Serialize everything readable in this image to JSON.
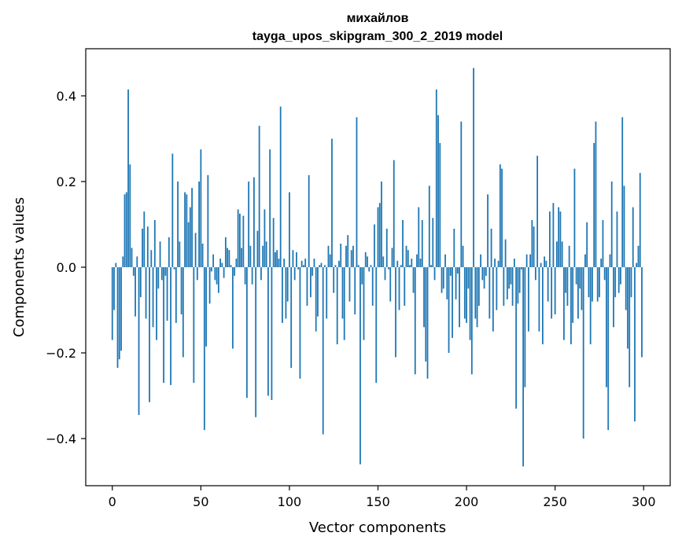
{
  "chart_data": {
    "type": "bar",
    "title": "михайлов",
    "subtitle": "tayga_upos_skipgram_300_2_2019 model",
    "xlabel": "Vector components",
    "ylabel": "Components values",
    "xlim": [
      -15,
      315
    ],
    "ylim": [
      -0.51,
      0.51
    ],
    "xticks": [
      0,
      50,
      100,
      150,
      200,
      250,
      300
    ],
    "yticks": [
      -0.4,
      -0.2,
      0.0,
      0.2,
      0.4
    ],
    "xtick_labels": [
      "0",
      "50",
      "100",
      "150",
      "200",
      "250",
      "300"
    ],
    "ytick_labels": [
      "−0.4",
      "−0.2",
      "0.0",
      "0.2",
      "0.4"
    ],
    "grid": false,
    "bar_color": "#1f77b4",
    "x_start": 0,
    "values": [
      -0.17,
      -0.1,
      0.01,
      -0.235,
      -0.215,
      -0.195,
      0.025,
      0.17,
      0.175,
      0.415,
      0.24,
      0.045,
      -0.02,
      -0.115,
      0.025,
      -0.345,
      -0.07,
      0.09,
      0.13,
      -0.12,
      0.095,
      -0.315,
      0.04,
      -0.14,
      0.11,
      -0.17,
      -0.05,
      0.06,
      -0.03,
      -0.27,
      -0.02,
      -0.125,
      0.07,
      -0.275,
      0.265,
      -0.005,
      -0.13,
      0.2,
      0.06,
      -0.11,
      -0.21,
      0.175,
      0.17,
      0.105,
      0.14,
      0.185,
      -0.27,
      0.08,
      -0.03,
      0.2,
      0.275,
      0.055,
      -0.38,
      -0.185,
      0.215,
      -0.085,
      -0.01,
      0.03,
      -0.03,
      -0.04,
      -0.06,
      0.02,
      0.01,
      -0.025,
      0.07,
      0.045,
      0.04,
      0.005,
      -0.19,
      -0.02,
      0.02,
      0.135,
      0.125,
      0.045,
      0.12,
      -0.04,
      -0.305,
      0.2,
      0.05,
      -0.04,
      0.21,
      -0.35,
      0.085,
      0.33,
      -0.03,
      0.05,
      0.135,
      0.06,
      -0.3,
      0.275,
      -0.31,
      0.115,
      0.035,
      0.04,
      0.02,
      0.375,
      -0.13,
      0.02,
      -0.12,
      -0.08,
      0.175,
      -0.235,
      0.04,
      -0.03,
      0.035,
      -0.005,
      -0.26,
      0.015,
      0.005,
      0.02,
      -0.09,
      0.215,
      -0.07,
      -0.02,
      0.02,
      -0.15,
      -0.115,
      0.005,
      0.01,
      -0.39,
      0.005,
      -0.12,
      0.05,
      0.03,
      0.3,
      -0.06,
      0.005,
      -0.18,
      0.015,
      0.055,
      -0.12,
      -0.17,
      0.05,
      0.075,
      -0.08,
      0.04,
      0.05,
      -0.11,
      0.35,
      0.005,
      -0.46,
      -0.04,
      -0.17,
      0.035,
      0.025,
      -0.01,
      0.005,
      -0.09,
      0.1,
      -0.27,
      0.14,
      0.15,
      0.2,
      0.025,
      -0.03,
      0.09,
      -0.005,
      -0.08,
      0.045,
      0.25,
      -0.21,
      0.015,
      -0.1,
      0.005,
      0.11,
      -0.09,
      0.05,
      0.04,
      0.005,
      0.02,
      -0.06,
      -0.25,
      0.03,
      0.14,
      0.02,
      0.11,
      -0.14,
      -0.22,
      -0.26,
      0.19,
      0.005,
      0.115,
      -0.03,
      0.415,
      0.355,
      0.29,
      -0.06,
      -0.05,
      0.03,
      -0.075,
      -0.2,
      -0.02,
      -0.165,
      0.09,
      -0.075,
      -0.015,
      -0.14,
      0.34,
      0.05,
      -0.12,
      -0.13,
      -0.05,
      -0.17,
      -0.25,
      0.465,
      -0.12,
      -0.14,
      -0.09,
      0.03,
      -0.03,
      -0.05,
      -0.02,
      0.17,
      -0.12,
      0.09,
      -0.15,
      0.02,
      -0.1,
      0.015,
      0.24,
      0.23,
      -0.09,
      0.065,
      -0.075,
      -0.05,
      -0.04,
      -0.09,
      0.02,
      -0.33,
      -0.085,
      -0.06,
      -0.005,
      -0.465,
      -0.28,
      0.03,
      -0.15,
      0.03,
      0.11,
      0.095,
      -0.03,
      0.26,
      -0.15,
      0.01,
      -0.18,
      0.025,
      0.015,
      -0.08,
      0.13,
      -0.12,
      0.15,
      -0.11,
      0.06,
      0.14,
      0.13,
      0.06,
      -0.17,
      -0.06,
      -0.09,
      0.05,
      -0.18,
      -0.13,
      0.23,
      -0.04,
      -0.12,
      -0.05,
      -0.1,
      -0.4,
      0.03,
      0.105,
      -0.07,
      -0.18,
      -0.08,
      0.29,
      0.34,
      -0.08,
      -0.07,
      0.02,
      0.11,
      -0.03,
      -0.28,
      -0.38,
      0.03,
      0.2,
      -0.14,
      -0.07,
      0.13,
      -0.06,
      -0.04,
      0.35,
      0.19,
      -0.1,
      -0.19,
      -0.28,
      -0.07,
      0.14,
      -0.36,
      0.01,
      0.05,
      0.22,
      -0.21
    ]
  }
}
